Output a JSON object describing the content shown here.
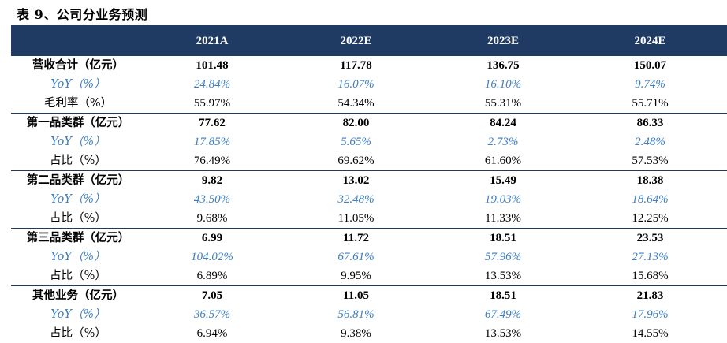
{
  "caption": "表 9、公司分业务预测",
  "columns": [
    "",
    "2021A",
    "2022E",
    "2023E",
    "2024E"
  ],
  "groups": [
    {
      "rows": [
        {
          "label": "营收合计（亿元）",
          "values": [
            "101.48",
            "117.78",
            "136.75",
            "150.07"
          ]
        },
        {
          "label": "YoY（%）",
          "values": [
            "24.84%",
            "16.07%",
            "16.10%",
            "9.74%"
          ]
        },
        {
          "label": "毛利率（%）",
          "values": [
            "55.97%",
            "54.34%",
            "55.31%",
            "55.71%"
          ]
        }
      ]
    },
    {
      "rows": [
        {
          "label": "第一品类群（亿元）",
          "values": [
            "77.62",
            "82.00",
            "84.24",
            "86.33"
          ]
        },
        {
          "label": "YoY（%）",
          "values": [
            "17.85%",
            "5.65%",
            "2.73%",
            "2.48%"
          ]
        },
        {
          "label": "占比（%）",
          "values": [
            "76.49%",
            "69.62%",
            "61.60%",
            "57.53%"
          ]
        }
      ]
    },
    {
      "rows": [
        {
          "label": "第二品类群（亿元）",
          "values": [
            "9.82",
            "13.02",
            "15.49",
            "18.38"
          ]
        },
        {
          "label": "YoY（%）",
          "values": [
            "43.50%",
            "32.48%",
            "19.03%",
            "18.64%"
          ]
        },
        {
          "label": "占比（%）",
          "values": [
            "9.68%",
            "11.05%",
            "11.33%",
            "12.25%"
          ]
        }
      ]
    },
    {
      "rows": [
        {
          "label": "第三品类群（亿元）",
          "values": [
            "6.99",
            "11.72",
            "18.51",
            "23.53"
          ]
        },
        {
          "label": "YoY（%）",
          "values": [
            "104.02%",
            "67.61%",
            "57.96%",
            "27.13%"
          ]
        },
        {
          "label": "占比（%）",
          "values": [
            "6.89%",
            "9.95%",
            "13.53%",
            "15.68%"
          ]
        }
      ]
    },
    {
      "rows": [
        {
          "label": "其他业务（亿元）",
          "values": [
            "7.05",
            "11.05",
            "18.51",
            "21.83"
          ]
        },
        {
          "label": "YoY（%）",
          "values": [
            "36.57%",
            "56.81%",
            "67.49%",
            "17.96%"
          ]
        },
        {
          "label": "占比（%）",
          "values": [
            "6.94%",
            "9.38%",
            "13.53%",
            "14.55%"
          ]
        }
      ]
    }
  ],
  "colors": {
    "header_bg": "#1f3a63",
    "yoy_text": "#3d7fc1"
  }
}
